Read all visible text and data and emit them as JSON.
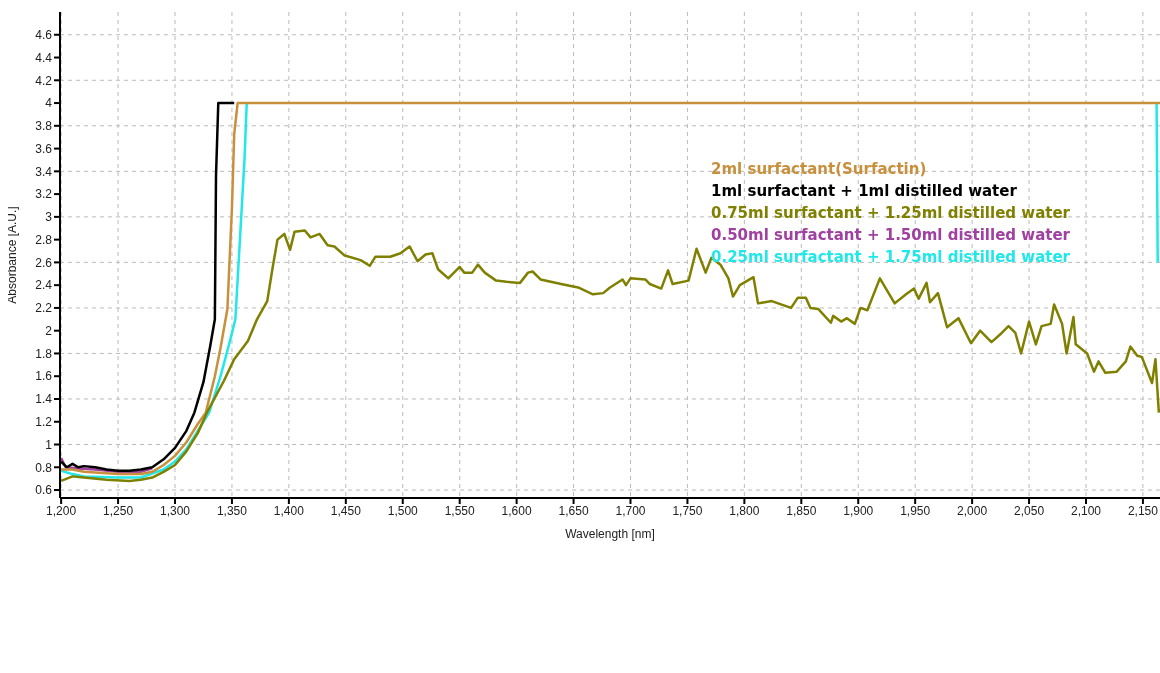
{
  "chart_data": {
    "type": "line",
    "xlabel": "Wavelength [nm]",
    "ylabel": "Absorbance [A.U.]",
    "xlim": [
      1199,
      2165
    ],
    "ylim": [
      0.53,
      4.8
    ],
    "xticks": [
      {
        "value": 1200,
        "label": "1,200"
      },
      {
        "value": 1250,
        "label": "1,250"
      },
      {
        "value": 1300,
        "label": "1,300"
      },
      {
        "value": 1350,
        "label": "1,350"
      },
      {
        "value": 1400,
        "label": "1,400"
      },
      {
        "value": 1450,
        "label": "1,450"
      },
      {
        "value": 1500,
        "label": "1,500"
      },
      {
        "value": 1550,
        "label": "1,550"
      },
      {
        "value": 1600,
        "label": "1,600"
      },
      {
        "value": 1650,
        "label": "1,650"
      },
      {
        "value": 1700,
        "label": "1,700"
      },
      {
        "value": 1750,
        "label": "1,750"
      },
      {
        "value": 1800,
        "label": "1,800"
      },
      {
        "value": 1850,
        "label": "1,850"
      },
      {
        "value": 1900,
        "label": "1,900"
      },
      {
        "value": 1950,
        "label": "1,950"
      },
      {
        "value": 2000,
        "label": "2,000"
      },
      {
        "value": 2050,
        "label": "2,050"
      },
      {
        "value": 2100,
        "label": "2,100"
      },
      {
        "value": 2150,
        "label": "2,150"
      }
    ],
    "yticks": [
      0.6,
      0.8,
      1,
      1.2,
      1.4,
      1.6,
      1.8,
      2,
      2.2,
      2.4,
      2.6,
      2.8,
      3,
      3.2,
      3.4,
      3.6,
      3.8,
      4,
      4.2,
      4.4,
      4.6
    ],
    "grid": true,
    "legend": "top right",
    "marker": "none",
    "line_style": "solid",
    "series": [
      {
        "name": "0.50ml surfactant + 1.50ml distilled water",
        "color": "#a040a0",
        "x": [
          1200,
          1204,
          1215,
          1230,
          1250,
          1270,
          1280
        ],
        "values": [
          0.88,
          0.8,
          0.79,
          0.78,
          0.76,
          0.76,
          0.79
        ]
      },
      {
        "name": "1ml surfactant + 1ml distilled water",
        "color": "#000000",
        "x": [
          1200,
          1205,
          1210,
          1215,
          1220,
          1230,
          1240,
          1250,
          1260,
          1270,
          1280,
          1290,
          1300,
          1310,
          1317,
          1325,
          1331,
          1335,
          1336,
          1338,
          1352
        ],
        "values": [
          0.85,
          0.8,
          0.83,
          0.8,
          0.81,
          0.8,
          0.78,
          0.77,
          0.77,
          0.78,
          0.8,
          0.87,
          0.97,
          1.12,
          1.28,
          1.55,
          1.87,
          2.1,
          3.36,
          4.0,
          4.0
        ]
      },
      {
        "name": "0.25ml surfactant + 1.75ml distilled water",
        "color": "#20e8e8",
        "x": [
          1200,
          1210,
          1220,
          1250,
          1270,
          1290,
          1300,
          1310,
          1320,
          1330,
          1340,
          1348,
          1353,
          1357,
          1361,
          1363,
          2000,
          2162,
          2163
        ],
        "values": [
          0.77,
          0.74,
          0.72,
          0.71,
          0.71,
          0.78,
          0.85,
          0.96,
          1.12,
          1.28,
          1.6,
          1.9,
          2.1,
          2.8,
          3.5,
          4.0,
          null,
          4.0,
          2.6
        ]
      },
      {
        "name": "2ml surfactant(Surfactin)",
        "color": "#c8903c",
        "x": [
          1200,
          1210,
          1220,
          1250,
          1270,
          1280,
          1290,
          1300,
          1310,
          1320,
          1327,
          1335,
          1340,
          1346,
          1350,
          1352,
          1355,
          2165
        ],
        "values": [
          0.78,
          0.78,
          0.76,
          0.74,
          0.74,
          0.76,
          0.82,
          0.9,
          1.02,
          1.18,
          1.28,
          1.6,
          1.85,
          2.19,
          3.08,
          3.73,
          4.0,
          4.0
        ]
      },
      {
        "name": "0.75ml surfactant + 1.25ml distilled water",
        "color": "#808000",
        "x": [
          1200,
          1210,
          1220,
          1240,
          1260,
          1270,
          1280,
          1290,
          1300,
          1310,
          1320,
          1328,
          1343,
          1352,
          1364,
          1372,
          1381,
          1386,
          1390,
          1396,
          1401,
          1405,
          1414,
          1419,
          1427,
          1434,
          1440,
          1449,
          1463,
          1471,
          1476,
          1489,
          1498,
          1506,
          1513,
          1520,
          1526,
          1531,
          1540,
          1550,
          1554,
          1561,
          1566,
          1572,
          1582,
          1591,
          1603,
          1610,
          1614,
          1621,
          1639,
          1654,
          1667,
          1676,
          1682,
          1693,
          1696,
          1700,
          1713,
          1717,
          1727,
          1733,
          1737,
          1751,
          1758,
          1766,
          1771,
          1779,
          1786,
          1790,
          1796,
          1808,
          1812,
          1824,
          1841,
          1847,
          1854,
          1858,
          1865,
          1876,
          1878,
          1885,
          1890,
          1897,
          1902,
          1908,
          1919,
          1932,
          1942,
          1949,
          1953,
          1960,
          1963,
          1970,
          1978,
          1988,
          1999,
          2007,
          2017,
          2026,
          2032,
          2038,
          2043,
          2050,
          2056,
          2061,
          2069,
          2072,
          2079,
          2083,
          2089,
          2091,
          2101,
          2107,
          2111,
          2117,
          2127,
          2135,
          2139,
          2145,
          2149,
          2158,
          2161,
          2164
        ],
        "values": [
          0.68,
          0.72,
          0.71,
          0.69,
          0.68,
          0.69,
          0.71,
          0.76,
          0.82,
          0.94,
          1.1,
          1.28,
          1.56,
          1.75,
          1.91,
          2.1,
          2.26,
          2.57,
          2.8,
          2.85,
          2.71,
          2.87,
          2.88,
          2.82,
          2.85,
          2.75,
          2.74,
          2.66,
          2.62,
          2.57,
          2.65,
          2.65,
          2.68,
          2.74,
          2.61,
          2.67,
          2.68,
          2.54,
          2.46,
          2.56,
          2.51,
          2.51,
          2.58,
          2.51,
          2.44,
          2.43,
          2.42,
          2.51,
          2.52,
          2.45,
          2.41,
          2.38,
          2.32,
          2.33,
          2.38,
          2.45,
          2.4,
          2.46,
          2.45,
          2.41,
          2.37,
          2.53,
          2.41,
          2.44,
          2.72,
          2.51,
          2.64,
          2.58,
          2.46,
          2.3,
          2.4,
          2.47,
          2.24,
          2.26,
          2.2,
          2.29,
          2.29,
          2.2,
          2.19,
          2.07,
          2.13,
          2.08,
          2.11,
          2.06,
          2.2,
          2.18,
          2.46,
          2.24,
          2.32,
          2.37,
          2.28,
          2.42,
          2.25,
          2.33,
          2.03,
          2.11,
          1.89,
          2.0,
          1.9,
          1.98,
          2.04,
          1.98,
          1.8,
          2.08,
          1.88,
          2.04,
          2.06,
          2.23,
          2.06,
          1.8,
          2.12,
          1.88,
          1.8,
          1.64,
          1.73,
          1.63,
          1.64,
          1.73,
          1.86,
          1.78,
          1.77,
          1.54,
          1.75,
          1.28
        ]
      }
    ]
  }
}
